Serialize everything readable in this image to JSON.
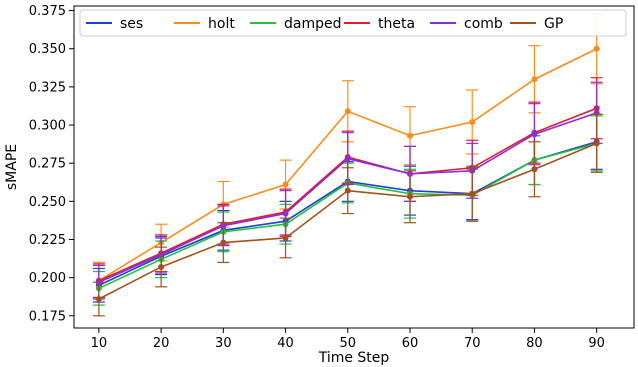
{
  "chart_data": {
    "type": "line",
    "title": "",
    "xlabel": "Time Step",
    "ylabel": "sMAPE",
    "x": [
      10,
      20,
      30,
      40,
      50,
      60,
      70,
      80,
      90
    ],
    "xlim": [
      6,
      96
    ],
    "ylim": [
      0.167,
      0.378
    ],
    "xticks": [
      10,
      20,
      30,
      40,
      50,
      60,
      70,
      80,
      90
    ],
    "yticks": [
      0.175,
      0.2,
      0.225,
      0.25,
      0.275,
      0.3,
      0.325,
      0.35,
      0.375
    ],
    "ytick_labels": [
      "0.175",
      "0.200",
      "0.225",
      "0.250",
      "0.275",
      "0.300",
      "0.325",
      "0.350",
      "0.375"
    ],
    "legend_position": "top",
    "series": [
      {
        "name": "ses",
        "color": "#1f3fd6",
        "values": [
          0.195,
          0.214,
          0.231,
          0.237,
          0.263,
          0.257,
          0.255,
          0.277,
          0.289
        ],
        "err": [
          0.011,
          0.012,
          0.013,
          0.013,
          0.013,
          0.016,
          0.017,
          0.016,
          0.018
        ]
      },
      {
        "name": "holt",
        "color": "#ff8c1a",
        "values": [
          0.198,
          0.223,
          0.248,
          0.261,
          0.309,
          0.293,
          0.302,
          0.33,
          0.35
        ],
        "err": [
          0.012,
          0.012,
          0.015,
          0.016,
          0.02,
          0.019,
          0.021,
          0.022,
          0.023
        ]
      },
      {
        "name": "damped",
        "color": "#22c33b",
        "values": [
          0.193,
          0.212,
          0.23,
          0.235,
          0.262,
          0.255,
          0.254,
          0.277,
          0.288
        ],
        "err": [
          0.011,
          0.012,
          0.013,
          0.013,
          0.013,
          0.016,
          0.017,
          0.016,
          0.018
        ]
      },
      {
        "name": "theta",
        "color": "#e01b2b",
        "values": [
          0.198,
          0.216,
          0.235,
          0.243,
          0.279,
          0.268,
          0.272,
          0.295,
          0.311
        ],
        "err": [
          0.011,
          0.012,
          0.013,
          0.015,
          0.017,
          0.018,
          0.018,
          0.02,
          0.02
        ]
      },
      {
        "name": "comb",
        "color": "#8b2be2",
        "values": [
          0.197,
          0.215,
          0.234,
          0.242,
          0.278,
          0.268,
          0.27,
          0.294,
          0.308
        ],
        "err": [
          0.011,
          0.012,
          0.013,
          0.015,
          0.017,
          0.018,
          0.018,
          0.02,
          0.02
        ]
      },
      {
        "name": "GP",
        "color": "#a0521e",
        "values": [
          0.186,
          0.207,
          0.223,
          0.226,
          0.257,
          0.253,
          0.255,
          0.271,
          0.288
        ],
        "err": [
          0.011,
          0.013,
          0.013,
          0.013,
          0.015,
          0.017,
          0.018,
          0.018,
          0.019
        ]
      }
    ]
  }
}
